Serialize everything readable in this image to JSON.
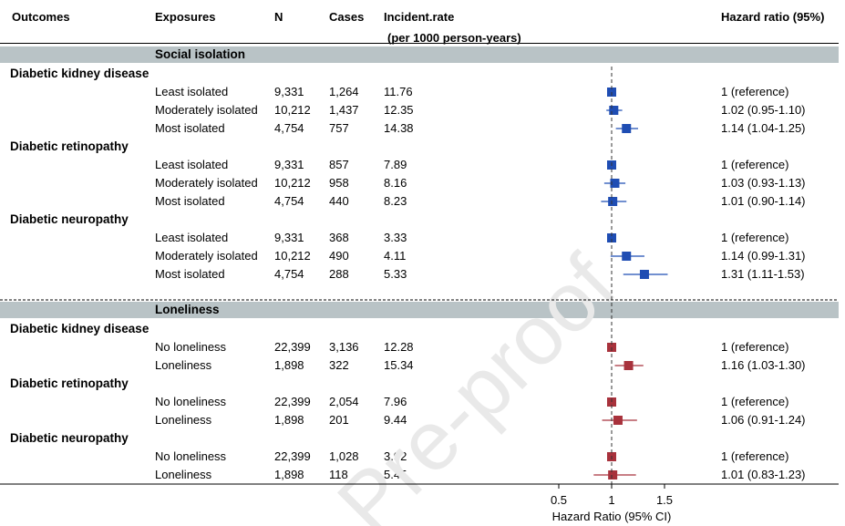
{
  "colors": {
    "isolation": "#1f4db3",
    "loneliness": "#a8323c",
    "band": "#b9c3c6"
  },
  "header": {
    "outcomes": "Outcomes",
    "exposures": "Exposures",
    "n": "N",
    "cases": "Cases",
    "rate": "Incident.rate",
    "rate_sub": "(per 1000 person-years)",
    "hr": "Hazard ratio (95%)"
  },
  "watermark": "Pre-proof",
  "sections": [
    {
      "title": "Social isolation",
      "groups": [
        {
          "outcome": "Diabetic kidney disease",
          "rows": [
            {
              "exposure": "Least isolated",
              "n": "9,331",
              "cases": "1,264",
              "rate": "11.76",
              "hr": 1.0,
              "lo": 1.0,
              "hi": 1.0,
              "hr_text": "1 (reference)"
            },
            {
              "exposure": "Moderately isolated",
              "n": "10,212",
              "cases": "1,437",
              "rate": "12.35",
              "hr": 1.02,
              "lo": 0.95,
              "hi": 1.1,
              "hr_text": "1.02 (0.95-1.10)"
            },
            {
              "exposure": "Most isolated",
              "n": "4,754",
              "cases": "757",
              "rate": "14.38",
              "hr": 1.14,
              "lo": 1.04,
              "hi": 1.25,
              "hr_text": "1.14 (1.04-1.25)"
            }
          ]
        },
        {
          "outcome": "Diabetic retinopathy",
          "rows": [
            {
              "exposure": "Least isolated",
              "n": "9,331",
              "cases": "857",
              "rate": "7.89",
              "hr": 1.0,
              "lo": 1.0,
              "hi": 1.0,
              "hr_text": "1 (reference)"
            },
            {
              "exposure": "Moderately isolated",
              "n": "10,212",
              "cases": "958",
              "rate": "8.16",
              "hr": 1.03,
              "lo": 0.93,
              "hi": 1.13,
              "hr_text": "1.03 (0.93-1.13)"
            },
            {
              "exposure": "Most isolated",
              "n": "4,754",
              "cases": "440",
              "rate": "8.23",
              "hr": 1.01,
              "lo": 0.9,
              "hi": 1.14,
              "hr_text": "1.01 (0.90-1.14)"
            }
          ]
        },
        {
          "outcome": "Diabetic neuropathy",
          "rows": [
            {
              "exposure": "Least isolated",
              "n": "9,331",
              "cases": "368",
              "rate": "3.33",
              "hr": 1.0,
              "lo": 1.0,
              "hi": 1.0,
              "hr_text": "1 (reference)"
            },
            {
              "exposure": "Moderately isolated",
              "n": "10,212",
              "cases": "490",
              "rate": "4.11",
              "hr": 1.14,
              "lo": 0.99,
              "hi": 1.31,
              "hr_text": "1.14 (0.99-1.31)"
            },
            {
              "exposure": "Most isolated",
              "n": "4,754",
              "cases": "288",
              "rate": "5.33",
              "hr": 1.31,
              "lo": 1.11,
              "hi": 1.53,
              "hr_text": "1.31 (1.11-1.53)"
            }
          ]
        }
      ]
    },
    {
      "title": "Loneliness",
      "groups": [
        {
          "outcome": "Diabetic kidney disease",
          "rows": [
            {
              "exposure": "No loneliness",
              "n": "22,399",
              "cases": "3,136",
              "rate": "12.28",
              "hr": 1.0,
              "lo": 1.0,
              "hi": 1.0,
              "hr_text": "1  (reference)"
            },
            {
              "exposure": "Loneliness",
              "n": "1,898",
              "cases": "322",
              "rate": "15.34",
              "hr": 1.16,
              "lo": 1.03,
              "hi": 1.3,
              "hr_text": "1.16 (1.03-1.30)"
            }
          ]
        },
        {
          "outcome": "Diabetic retinopathy",
          "rows": [
            {
              "exposure": "No loneliness",
              "n": "22,399",
              "cases": "2,054",
              "rate": "7.96",
              "hr": 1.0,
              "lo": 1.0,
              "hi": 1.0,
              "hr_text": "1 (reference)"
            },
            {
              "exposure": "Loneliness",
              "n": "1,898",
              "cases": "201",
              "rate": "9.44",
              "hr": 1.06,
              "lo": 0.91,
              "hi": 1.24,
              "hr_text": "1.06 (0.91-1.24)"
            }
          ]
        },
        {
          "outcome": "Diabetic neuropathy",
          "rows": [
            {
              "exposure": "No loneliness",
              "n": "22,399",
              "cases": "1,028",
              "rate": "3.92",
              "hr": 1.0,
              "lo": 1.0,
              "hi": 1.0,
              "hr_text": "1 (reference)"
            },
            {
              "exposure": "Loneliness",
              "n": "1,898",
              "cases": "118",
              "rate": "5.45",
              "hr": 1.01,
              "lo": 0.83,
              "hi": 1.23,
              "hr_text": "1.01 (0.83-1.23)"
            }
          ]
        }
      ]
    }
  ],
  "chart_data": {
    "type": "forest",
    "xlabel": "Hazard Ratio (95% CI)",
    "xlim": [
      0.5,
      1.5
    ],
    "ticks": [
      0.5,
      1,
      1.5
    ],
    "tick_labels": [
      "0.5",
      "1",
      "1.5"
    ],
    "reference_line": 1,
    "series": [
      {
        "name": "Social isolation",
        "color": "#1f4db3"
      },
      {
        "name": "Loneliness",
        "color": "#a8323c"
      }
    ]
  }
}
